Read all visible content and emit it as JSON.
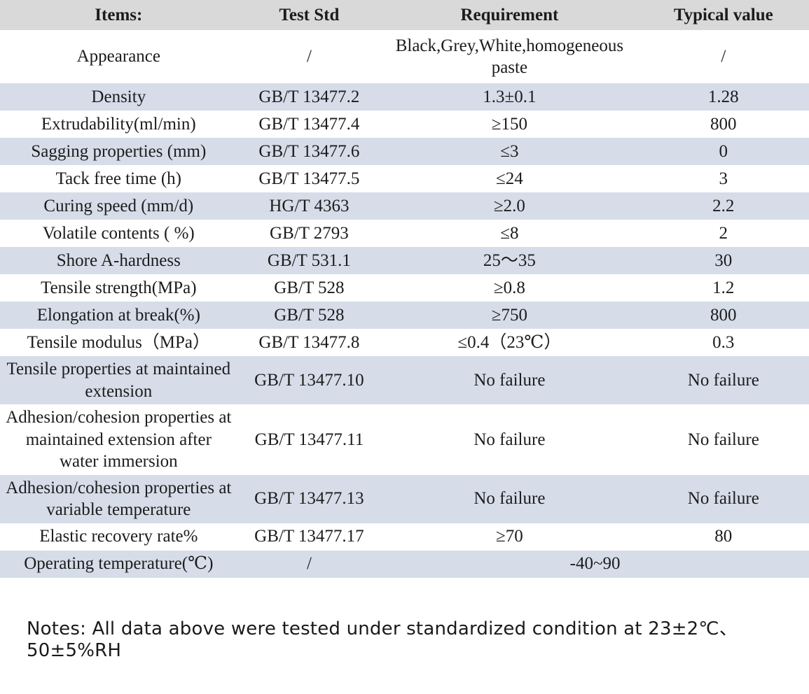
{
  "colors": {
    "header_bg": "#d9d9d9",
    "stripe_bg": "#d6dde9",
    "plain_bg": "#ffffff"
  },
  "table": {
    "headers": [
      "Items:",
      "Test Std",
      "Requirement",
      "Typical value"
    ],
    "rows": [
      {
        "item": "Appearance",
        "std": "/",
        "req": "Black,Grey,White,homogeneous paste",
        "val": "/"
      },
      {
        "item": "Density",
        "std": "GB/T 13477.2",
        "req": "1.3±0.1",
        "val": "1.28"
      },
      {
        "item": "Extrudability(ml/min)",
        "std": "GB/T 13477.4",
        "req": "≥150",
        "val": "800"
      },
      {
        "item": "Sagging properties (mm)",
        "std": "GB/T 13477.6",
        "req": "≤3",
        "val": "0"
      },
      {
        "item": "Tack free time (h)",
        "std": "GB/T 13477.5",
        "req": "≤24",
        "val": "3"
      },
      {
        "item": "Curing speed (mm/d)",
        "std": "HG/T 4363",
        "req": "≥2.0",
        "val": "2.2"
      },
      {
        "item": "Volatile contents ( %)",
        "std": "GB/T 2793",
        "req": "≤8",
        "val": "2"
      },
      {
        "item": "Shore A-hardness",
        "std": "GB/T 531.1",
        "req": "25～35",
        "val": "30"
      },
      {
        "item": "Tensile strength(MPa)",
        "std": "GB/T 528",
        "req": "≥0.8",
        "val": "1.2"
      },
      {
        "item": "Elongation at break(%)",
        "std": "GB/T 528",
        "req": "≥750",
        "val": "800"
      },
      {
        "item": "Tensile modulus（MPa）",
        "std": "GB/T 13477.8",
        "req": "≤0.4（23℃）",
        "val": "0.3"
      },
      {
        "item": "Tensile properties at maintained extension",
        "std": "GB/T 13477.10",
        "req": "No failure",
        "val": "No failure"
      },
      {
        "item": "Adhesion/cohesion properties at maintained extension after water immersion",
        "std": "GB/T 13477.11",
        "req": "No failure",
        "val": "No failure"
      },
      {
        "item": "Adhesion/cohesion properties at variable temperature",
        "std": "GB/T 13477.13",
        "req": "No failure",
        "val": "No failure"
      },
      {
        "item": "Elastic recovery rate%",
        "std": "GB/T 13477.17",
        "req": "≥70",
        "val": "80"
      },
      {
        "item": "Operating temperature(℃)",
        "std": "/",
        "req_span": "-40~90"
      }
    ]
  },
  "footer": {
    "note": "Notes: All data above were tested under standardized condition at 23±2℃、50±5%RH"
  }
}
